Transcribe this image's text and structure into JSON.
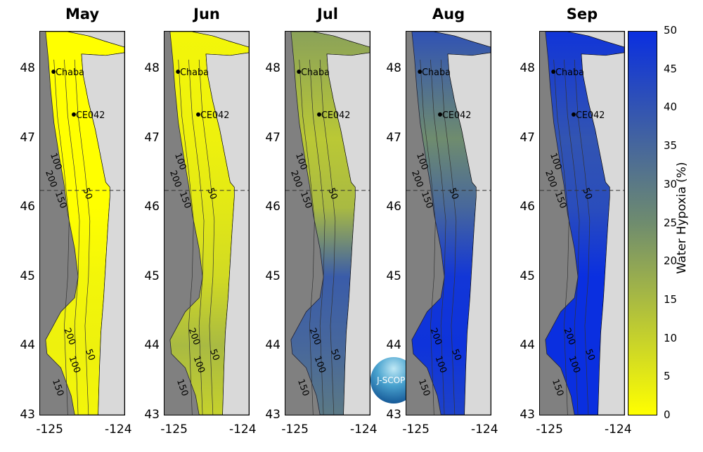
{
  "panels": [
    {
      "title": "May",
      "hypoxia_by_lat": [
        [
          48.5,
          0
        ],
        [
          47,
          0
        ],
        [
          46,
          0
        ],
        [
          45,
          2
        ],
        [
          44,
          3
        ],
        [
          43,
          2
        ]
      ]
    },
    {
      "title": "Jun",
      "hypoxia_by_lat": [
        [
          48.5,
          2
        ],
        [
          47,
          3
        ],
        [
          46,
          5
        ],
        [
          45,
          8
        ],
        [
          44,
          15
        ],
        [
          43,
          10
        ]
      ]
    },
    {
      "title": "Jul",
      "hypoxia_by_lat": [
        [
          48.5,
          20
        ],
        [
          47,
          12
        ],
        [
          46,
          15
        ],
        [
          45,
          38
        ],
        [
          44,
          35
        ],
        [
          43,
          30
        ]
      ]
    },
    {
      "title": "Aug",
      "hypoxia_by_lat": [
        [
          48.5,
          40
        ],
        [
          47,
          25
        ],
        [
          46,
          35
        ],
        [
          45,
          48
        ],
        [
          44,
          49
        ],
        [
          43,
          45
        ]
      ]
    },
    {
      "title": "Sep",
      "hypoxia_by_lat": [
        [
          48.5,
          48
        ],
        [
          47,
          40
        ],
        [
          46,
          42
        ],
        [
          45,
          50
        ],
        [
          44,
          50
        ],
        [
          43,
          50
        ]
      ]
    }
  ],
  "yticks": [
    "48",
    "47",
    "46",
    "45",
    "44",
    "43"
  ],
  "xticks": [
    "-125",
    "-124"
  ],
  "stations": [
    {
      "name": "Chaba",
      "lon": -124.95,
      "lat": 47.97
    },
    {
      "name": "CE042",
      "lon": -124.65,
      "lat": 47.35
    }
  ],
  "contour_labels": [
    "200",
    "150",
    "100",
    "50"
  ],
  "dashed_lat": 46.25,
  "colorbar": {
    "label": "Water Hypoxia (%)",
    "ticks": [
      "50",
      "45",
      "40",
      "35",
      "30",
      "25",
      "20",
      "15",
      "10",
      "5",
      "0"
    ],
    "min": 0,
    "max": 50,
    "colors": {
      "low": "#ffff00",
      "mid": "#6f8c6e",
      "high": "#0a2fe0"
    }
  },
  "logo": {
    "text": "J-SCOPE"
  },
  "colors": {
    "land": "#d9d9d9",
    "deep_ocean": "#808080"
  }
}
